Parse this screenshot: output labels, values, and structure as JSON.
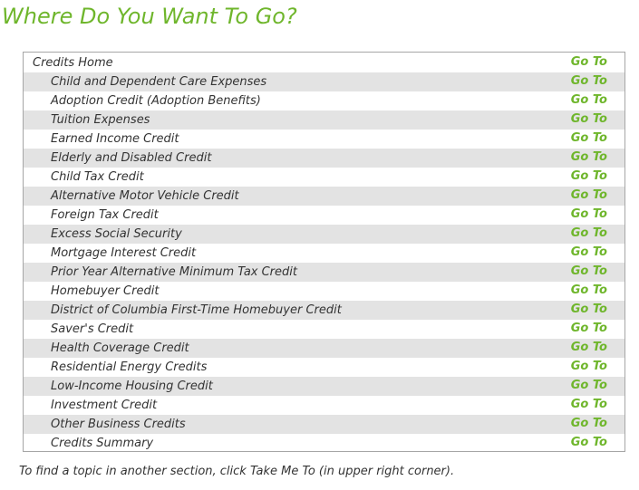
{
  "page": {
    "title": "Where Do You Want To Go?"
  },
  "menu": {
    "go_label": "Go To",
    "items": [
      {
        "label": "Credits Home"
      },
      {
        "label": "Child and Dependent Care Expenses"
      },
      {
        "label": "Adoption Credit (Adoption Benefits)"
      },
      {
        "label": "Tuition Expenses"
      },
      {
        "label": "Earned Income Credit"
      },
      {
        "label": "Elderly and Disabled Credit"
      },
      {
        "label": "Child Tax Credit"
      },
      {
        "label": "Alternative Motor Vehicle Credit"
      },
      {
        "label": "Foreign Tax Credit"
      },
      {
        "label": "Excess Social Security"
      },
      {
        "label": "Mortgage Interest Credit"
      },
      {
        "label": "Prior Year Alternative Minimum Tax Credit"
      },
      {
        "label": "Homebuyer Credit"
      },
      {
        "label": "District of Columbia First-Time Homebuyer Credit"
      },
      {
        "label": "Saver's Credit"
      },
      {
        "label": "Health Coverage Credit"
      },
      {
        "label": "Residential Energy Credits"
      },
      {
        "label": "Low-Income Housing Credit"
      },
      {
        "label": "Investment Credit"
      },
      {
        "label": "Other Business Credits"
      },
      {
        "label": "Credits Summary"
      }
    ]
  },
  "footer": {
    "note": "To find a topic in another section, click Take Me To (in upper right corner)."
  },
  "colors": {
    "accent_green": "#6fb62c",
    "row_shade": "#e3e3e3",
    "border": "#a6a6a6",
    "text": "#333333"
  }
}
